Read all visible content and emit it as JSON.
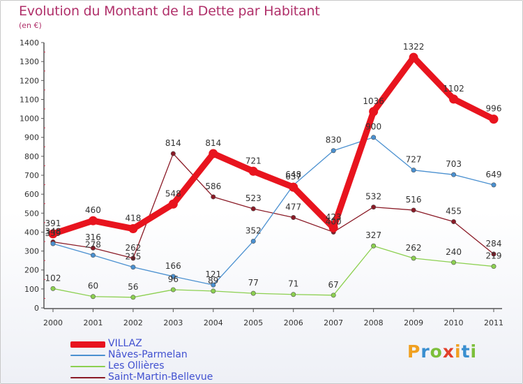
{
  "title": "Evolution du Montant de la Dette par Habitant",
  "subtitle": "(en €)",
  "brand": "Proxiti",
  "chart_data": {
    "type": "line",
    "x": [
      "2000",
      "2001",
      "2002",
      "2003",
      "2004",
      "2005",
      "2006",
      "2007",
      "2008",
      "2009",
      "2010",
      "2011"
    ],
    "ylim": [
      0,
      1400
    ],
    "yticks": [
      0,
      100,
      200,
      300,
      400,
      500,
      600,
      700,
      800,
      900,
      1000,
      1100,
      1200,
      1300,
      1400
    ],
    "grid": false,
    "legend_position": "bottom-left",
    "series": [
      {
        "name": "VILLAZ",
        "color": "#e8141e",
        "values": [
          391,
          460,
          418,
          548,
          814,
          721,
          637,
          423,
          1036,
          1322,
          1102,
          996
        ]
      },
      {
        "name": "Nâves-Parmelan",
        "color": "#4a90d0",
        "values": [
          339,
          278,
          215,
          166,
          121,
          352,
          648,
          830,
          900,
          727,
          703,
          649
        ]
      },
      {
        "name": "Les Ollières",
        "color": "#8cd050",
        "values": [
          102,
          60,
          56,
          96,
          89,
          77,
          71,
          67,
          327,
          262,
          240,
          219
        ]
      },
      {
        "name": "Saint-Martin-Bellevue",
        "color": "#8a1a26",
        "values": [
          348,
          316,
          262,
          814,
          586,
          523,
          477,
          400,
          532,
          516,
          455,
          284
        ]
      }
    ]
  }
}
